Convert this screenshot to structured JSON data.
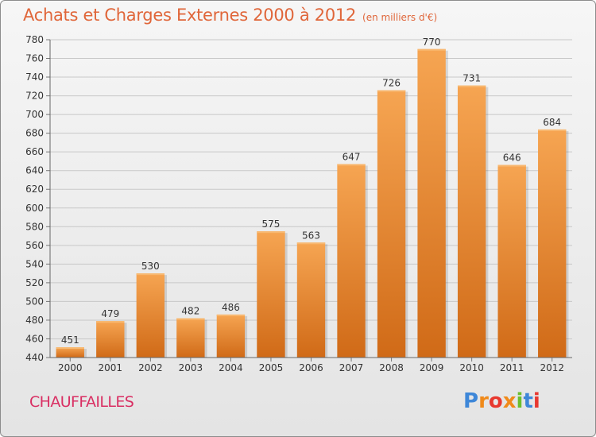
{
  "chart_data": {
    "type": "bar",
    "title": "Achats et Charges Externes 2000 à 2012",
    "unit_note": "(en milliers d'€)",
    "categories": [
      "2000",
      "2001",
      "2002",
      "2003",
      "2004",
      "2005",
      "2006",
      "2007",
      "2008",
      "2009",
      "2010",
      "2011",
      "2012"
    ],
    "values": [
      451,
      479,
      530,
      482,
      486,
      575,
      563,
      647,
      726,
      770,
      731,
      646,
      684
    ],
    "ylim": [
      440,
      780
    ],
    "yticks": [
      440,
      460,
      480,
      500,
      520,
      540,
      560,
      580,
      600,
      620,
      640,
      660,
      680,
      700,
      720,
      740,
      760,
      780
    ],
    "grid": "horizontal",
    "bar_color": "#f08a30",
    "bar_color_dark": "#d5681a"
  },
  "footer": {
    "commune": "CHAUFFAILLES",
    "logo_text": "Proxiti"
  }
}
